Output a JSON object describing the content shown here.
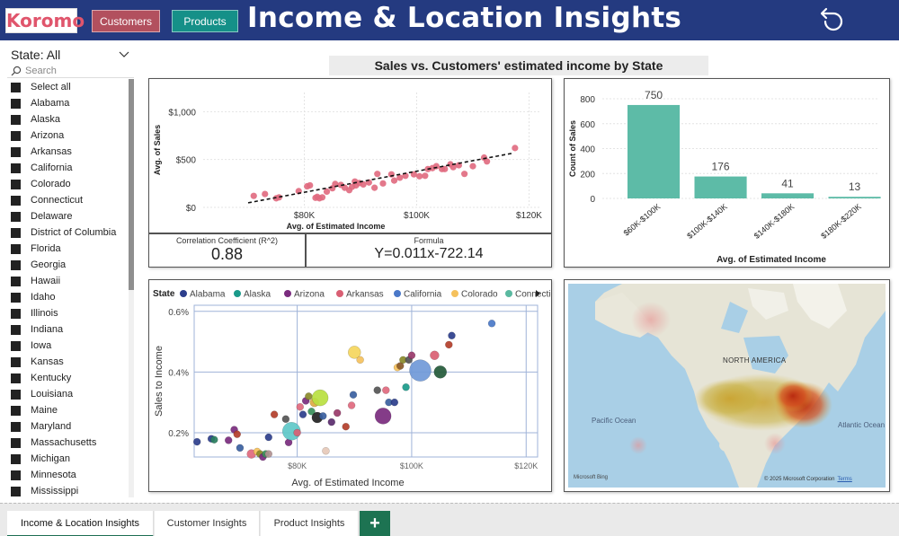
{
  "header": {
    "logo": "Koromo",
    "nav": {
      "customers": "Customers",
      "products": "Products"
    },
    "title": "Income & Location Insights"
  },
  "slicer": {
    "title": "State: All",
    "search_placeholder": "Search",
    "items": [
      "Select all",
      "Alabama",
      "Alaska",
      "Arizona",
      "Arkansas",
      "California",
      "Colorado",
      "Connecticut",
      "Delaware",
      "District of Columbia",
      "Florida",
      "Georgia",
      "Hawaii",
      "Idaho",
      "Illinois",
      "Indiana",
      "Iowa",
      "Kansas",
      "Kentucky",
      "Louisiana",
      "Maine",
      "Maryland",
      "Massachusetts",
      "Michigan",
      "Minnesota",
      "Mississippi"
    ]
  },
  "section_title": "Sales vs. Customers' estimated income by State",
  "kpis": {
    "correlation_label": "Correlation Coefficient (R^2)",
    "correlation_value": "0.88",
    "formula_label": "Formula",
    "formula_value": "Y=0.011x-722.14"
  },
  "chart_data": [
    {
      "type": "scatter",
      "id": "sales-vs-income",
      "title": "",
      "xlabel": "Avg. of Estimated Income",
      "ylabel": "Avg. of Sales",
      "x_ticks": [
        "$80K",
        "$100K",
        "$120K"
      ],
      "y_ticks": [
        "$0",
        "$500",
        "$1,000"
      ],
      "xlim": [
        62000,
        122000
      ],
      "ylim": [
        0,
        1200
      ],
      "point_color": "#e0697e",
      "trendline": {
        "slope": 0.011,
        "intercept": -722.14,
        "style": "dashed",
        "color": "#111111"
      },
      "points": [
        [
          71000,
          120
        ],
        [
          73000,
          140
        ],
        [
          75000,
          95
        ],
        [
          75500,
          105
        ],
        [
          79000,
          170
        ],
        [
          80500,
          220
        ],
        [
          81000,
          230
        ],
        [
          82000,
          100
        ],
        [
          82300,
          110
        ],
        [
          82700,
          95
        ],
        [
          83200,
          105
        ],
        [
          84000,
          165
        ],
        [
          85000,
          200
        ],
        [
          85500,
          245
        ],
        [
          86500,
          235
        ],
        [
          87200,
          205
        ],
        [
          88000,
          180
        ],
        [
          88500,
          215
        ],
        [
          89000,
          270
        ],
        [
          89200,
          230
        ],
        [
          89800,
          255
        ],
        [
          90500,
          240
        ],
        [
          91500,
          260
        ],
        [
          92500,
          205
        ],
        [
          93000,
          350
        ],
        [
          94000,
          250
        ],
        [
          95500,
          345
        ],
        [
          96000,
          280
        ],
        [
          97000,
          310
        ],
        [
          98000,
          330
        ],
        [
          99500,
          345
        ],
        [
          100500,
          325
        ],
        [
          101500,
          330
        ],
        [
          102000,
          400
        ],
        [
          102800,
          410
        ],
        [
          103500,
          430
        ],
        [
          104500,
          400
        ],
        [
          105000,
          400
        ],
        [
          106000,
          450
        ],
        [
          106500,
          420
        ],
        [
          107500,
          440
        ],
        [
          108500,
          350
        ],
        [
          110000,
          430
        ],
        [
          112000,
          520
        ],
        [
          112500,
          480
        ],
        [
          117500,
          620
        ]
      ]
    },
    {
      "type": "bar",
      "id": "count-by-income",
      "title": "",
      "xlabel": "Avg. of Estimated Income",
      "ylabel": "Count of Sales",
      "categories": [
        "$60K-$100K",
        "$100K-$140K",
        "$140K-$180K",
        "$180K-$220K"
      ],
      "values": [
        750,
        176,
        41,
        13
      ],
      "ylim": [
        0,
        800
      ],
      "y_ticks": [
        0,
        200,
        400,
        600,
        800
      ],
      "color": "#5dbba7",
      "data_labels": true
    },
    {
      "type": "scatter",
      "id": "sales-to-income-bubble",
      "title": "",
      "xlabel": "Avg. of Estimated Income",
      "ylabel": "Sales to Income",
      "x_ticks": [
        "$80K",
        "$100K",
        "$120K"
      ],
      "y_ticks": [
        "0.2%",
        "0.4%",
        "0.6%"
      ],
      "xlim": [
        62000,
        122000
      ],
      "ylim": [
        0.0012,
        0.0062
      ],
      "legend": {
        "title": "State",
        "position": "top",
        "entries": [
          {
            "name": "Alabama",
            "color": "#2c3e8c"
          },
          {
            "name": "Alaska",
            "color": "#1a9a8a"
          },
          {
            "name": "Arizona",
            "color": "#7a2b7e"
          },
          {
            "name": "Arkansas",
            "color": "#d95f73"
          },
          {
            "name": "California",
            "color": "#4a78c8"
          },
          {
            "name": "Colorado",
            "color": "#f5c15c"
          },
          {
            "name": "Connecticut",
            "color": "#5ab9a0"
          }
        ]
      },
      "points": [
        [
          62500,
          0.0017,
          4,
          "#2c3e8c"
        ],
        [
          65000,
          0.0018,
          4,
          "#2c3e8c"
        ],
        [
          65500,
          0.00177,
          4,
          "#2a7f5f"
        ],
        [
          68000,
          0.00175,
          4,
          "#7a2b7e"
        ],
        [
          69000,
          0.0021,
          4,
          "#7a2b7e"
        ],
        [
          69500,
          0.00195,
          4,
          "#b33e2a"
        ],
        [
          70000,
          0.0015,
          4,
          "#3a5fa0"
        ],
        [
          72000,
          0.0013,
          5,
          "#e0697e"
        ],
        [
          73000,
          0.00138,
          4,
          "#f5c15c"
        ],
        [
          73500,
          0.0013,
          4,
          "#8a8a2a"
        ],
        [
          74000,
          0.0012,
          4,
          "#7a2b7e"
        ],
        [
          74500,
          0.0013,
          4,
          "#3a8f5a"
        ],
        [
          75000,
          0.0013,
          4,
          "#b09090"
        ],
        [
          75000,
          0.00185,
          4,
          "#2c3e8c"
        ],
        [
          76000,
          0.0026,
          4,
          "#b33e2a"
        ],
        [
          78000,
          0.00245,
          4,
          "#555555"
        ],
        [
          78500,
          0.00168,
          4,
          "#7a2b7e"
        ],
        [
          79000,
          0.00205,
          10,
          "#5ec8c8"
        ],
        [
          80000,
          0.002,
          4,
          "#d95f73"
        ],
        [
          80500,
          0.00285,
          4,
          "#e0697e"
        ],
        [
          81000,
          0.0026,
          4,
          "#2c3e8c"
        ],
        [
          81500,
          0.00305,
          4,
          "#7a2b7e"
        ],
        [
          82000,
          0.0032,
          4,
          "#8a8a2a"
        ],
        [
          82500,
          0.0027,
          4,
          "#3a8f5a"
        ],
        [
          83000,
          0.003,
          5,
          "#ddaa44"
        ],
        [
          83500,
          0.0025,
          6,
          "#222222"
        ],
        [
          84000,
          0.00315,
          9,
          "#b8e040"
        ],
        [
          84500,
          0.00255,
          4,
          "#3a5fa0"
        ],
        [
          85000,
          0.0014,
          4,
          "#e6c9b8"
        ],
        [
          86000,
          0.00235,
          4,
          "#5a2b6e"
        ],
        [
          87000,
          0.00265,
          4,
          "#9a3a6a"
        ],
        [
          88500,
          0.0022,
          4,
          "#b33e2a"
        ],
        [
          89500,
          0.0029,
          4,
          "#e0697e"
        ],
        [
          89800,
          0.00325,
          4,
          "#3a5fa0"
        ],
        [
          90000,
          0.00465,
          7,
          "#f5d65c"
        ],
        [
          91000,
          0.0044,
          4,
          "#f5c15c"
        ],
        [
          94000,
          0.0034,
          4,
          "#555555"
        ],
        [
          95000,
          0.00255,
          9,
          "#7a2b7e"
        ],
        [
          95500,
          0.0034,
          4,
          "#e0697e"
        ],
        [
          96000,
          0.003,
          4,
          "#3a5fa0"
        ],
        [
          97000,
          0.003,
          4,
          "#2c3e8c"
        ],
        [
          97500,
          0.00415,
          4,
          "#f5c15c"
        ],
        [
          98000,
          0.0042,
          4,
          "#8a5a2a"
        ],
        [
          98500,
          0.0044,
          4,
          "#8a8a2a"
        ],
        [
          99000,
          0.0035,
          4,
          "#1a9a8a"
        ],
        [
          99500,
          0.0044,
          4,
          "#555555"
        ],
        [
          100000,
          0.00455,
          4,
          "#9a3a6a"
        ],
        [
          101500,
          0.00405,
          12,
          "#7099d8"
        ],
        [
          104000,
          0.00455,
          5,
          "#d95f73"
        ],
        [
          105000,
          0.004,
          7,
          "#245a3a"
        ],
        [
          106500,
          0.0049,
          4,
          "#b33e2a"
        ],
        [
          107000,
          0.0052,
          4,
          "#2c3e8c"
        ],
        [
          114000,
          0.0056,
          4,
          "#4a78c8"
        ]
      ]
    }
  ],
  "map": {
    "label_north_america": "NORTH AMERICA",
    "label_pacific": "Pacific Ocean",
    "label_atlantic": "Atlantic Ocean",
    "bing": "Microsoft Bing",
    "copyright": "© 2025 Microsoft Corporation",
    "terms": "Terms"
  },
  "tabs": {
    "active": "Income & Location Insights",
    "customer": "Customer Insights",
    "product": "Product Insights",
    "add": "+"
  }
}
